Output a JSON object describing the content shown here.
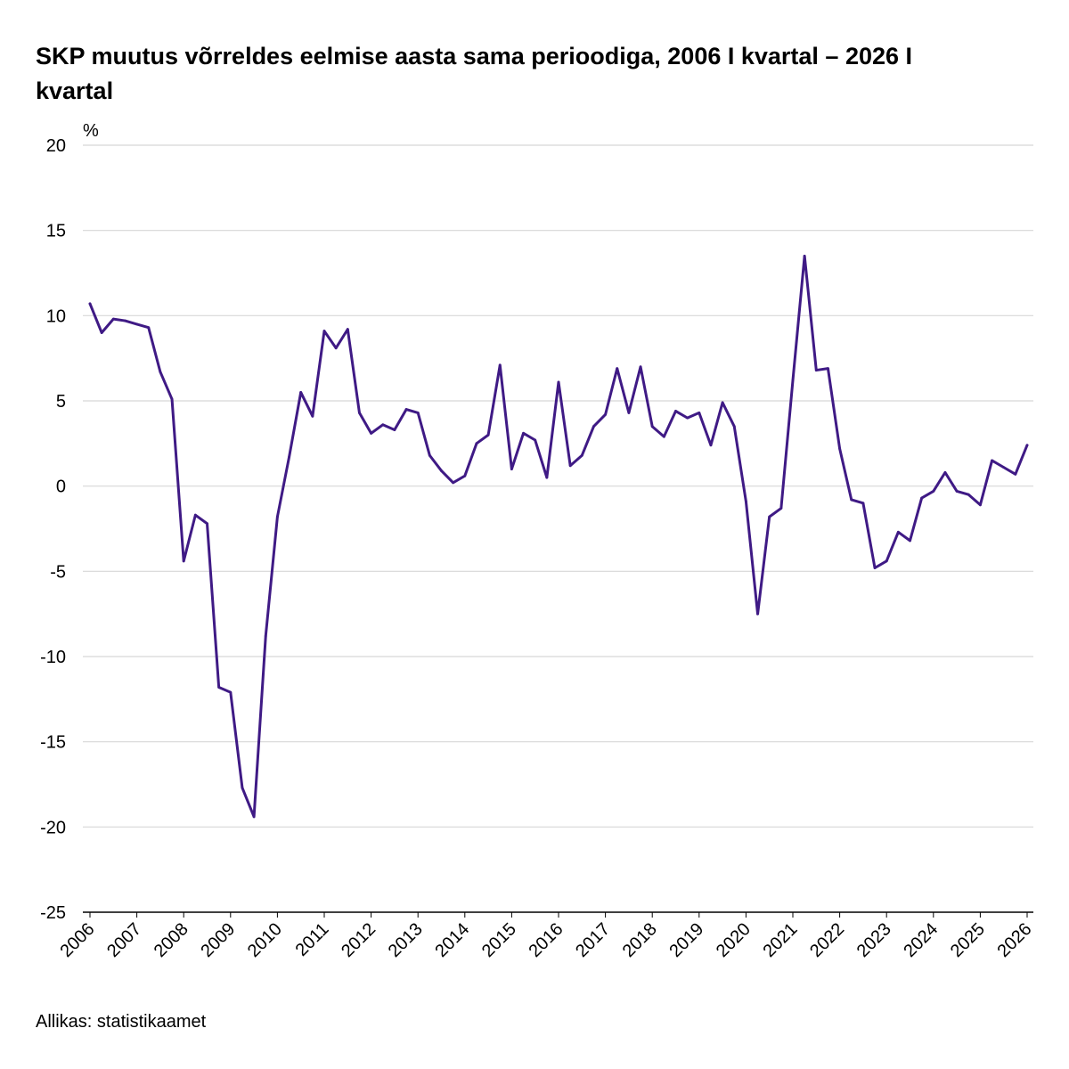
{
  "chart_data": {
    "type": "line",
    "title_line1": "SKP muutus võrreldes eelmise aasta sama perioodiga, 2006 I kvartal – 2026 I",
    "title_line2": "kvartal",
    "ylabel": "%",
    "xlabel": "",
    "ylim": [
      -25,
      20
    ],
    "yticks": [
      "20",
      "15",
      "10",
      "5",
      "0",
      "-5",
      "-10",
      "-15",
      "-20",
      "-25"
    ],
    "year_labels": [
      "2006",
      "2007",
      "2008",
      "2009",
      "2010",
      "2011",
      "2012",
      "2013",
      "2014",
      "2015",
      "2016",
      "2017",
      "2018",
      "2019",
      "2020",
      "2021",
      "2022",
      "2023",
      "2024",
      "2025",
      "2026"
    ],
    "grid": true,
    "legend": "none",
    "color": "#3f1a85",
    "series": [
      {
        "values": [
          10.7,
          9.0,
          9.8,
          9.7,
          9.5,
          9.3,
          6.7,
          5.1,
          -4.4,
          -1.7,
          -2.2,
          -11.8,
          -12.1,
          -17.7,
          -19.4,
          -8.8,
          -1.8,
          1.7,
          5.5,
          4.1,
          9.1,
          8.1,
          9.2,
          4.3,
          3.1,
          3.6,
          3.3,
          4.5,
          4.3,
          1.8,
          0.9,
          0.2,
          0.6,
          2.5,
          3.0,
          7.1,
          1.0,
          3.1,
          2.7,
          0.5,
          6.1,
          1.2,
          1.8,
          3.5,
          4.2,
          6.9,
          4.3,
          7.0,
          3.5,
          2.9,
          4.4,
          4.0,
          4.3,
          2.4,
          4.9,
          3.5,
          -0.9,
          -7.5,
          -1.8,
          -1.3,
          6.2,
          13.5,
          6.8,
          6.9,
          2.2,
          -0.8,
          -1.0,
          -4.8,
          -4.4,
          -2.7,
          -3.2,
          -0.7,
          -0.3,
          0.8,
          -0.3,
          -0.5,
          -1.1,
          1.5,
          1.1,
          0.7,
          2.4
        ]
      }
    ]
  },
  "source": "Allikas: statistikaamet"
}
